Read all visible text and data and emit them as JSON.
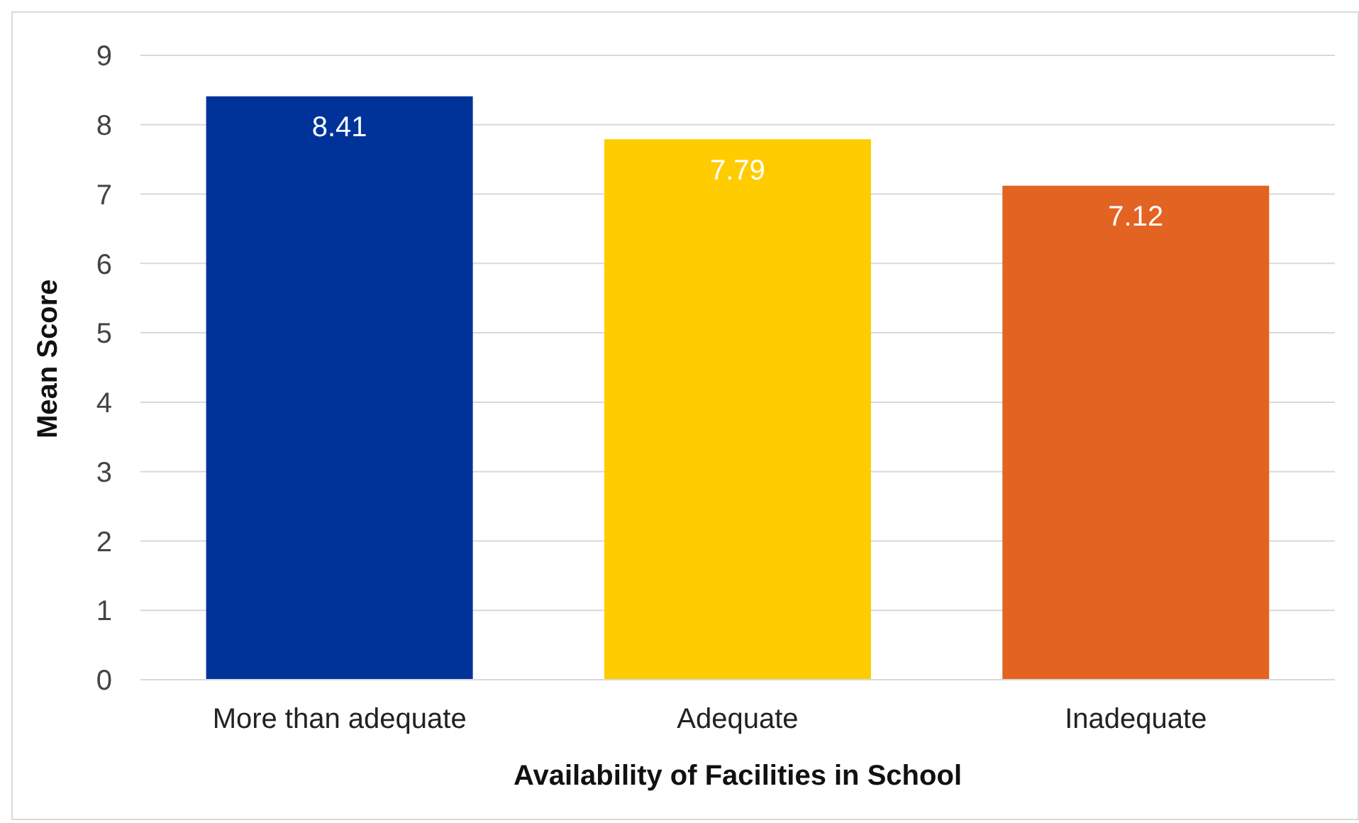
{
  "chart_data": {
    "type": "bar",
    "xlabel": "Availability of Facilities in School",
    "ylabel": "Mean Score",
    "categories": [
      "More than adequate",
      "Adequate",
      "Inadequate"
    ],
    "values": [
      8.41,
      7.79,
      7.12
    ],
    "colors": [
      "#003399",
      "#ffcc00",
      "#e36322"
    ],
    "ylim": [
      0,
      9
    ],
    "yticks": [
      0,
      1,
      2,
      3,
      4,
      5,
      6,
      7,
      8,
      9
    ],
    "grid": "y",
    "data_labels": true
  }
}
